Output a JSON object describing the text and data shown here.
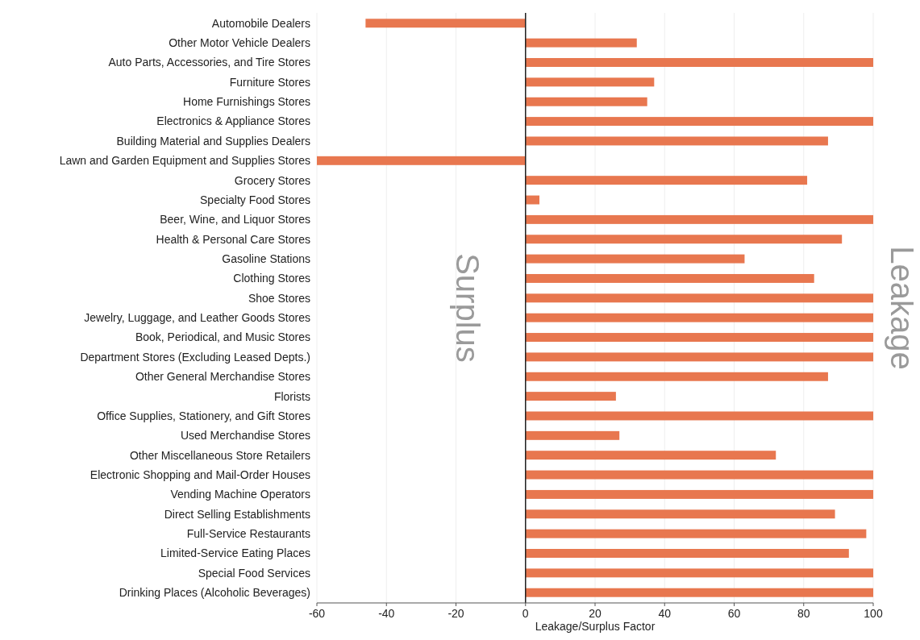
{
  "chart_data": {
    "type": "bar",
    "orientation": "horizontal",
    "xlabel": "Leakage/Surplus Factor",
    "categories": [
      "Automobile Dealers",
      "Other Motor Vehicle Dealers",
      "Auto Parts, Accessories, and Tire Stores",
      "Furniture Stores",
      "Home Furnishings Stores",
      "Electronics & Appliance Stores",
      "Building Material and Supplies Dealers",
      "Lawn and Garden Equipment and Supplies Stores",
      "Grocery Stores",
      "Specialty Food Stores",
      "Beer, Wine, and Liquor Stores",
      "Health & Personal Care Stores",
      "Gasoline Stations",
      "Clothing Stores",
      "Shoe Stores",
      "Jewelry, Luggage, and Leather Goods Stores",
      "Book, Periodical, and Music Stores",
      "Department Stores (Excluding Leased Depts.)",
      "Other General Merchandise Stores",
      "Florists",
      "Office Supplies, Stationery, and Gift Stores",
      "Used Merchandise Stores",
      "Other Miscellaneous Store Retailers",
      "Electronic Shopping and Mail-Order Houses",
      "Vending Machine Operators",
      "Direct Selling Establishments",
      "Full-Service Restaurants",
      "Limited-Service Eating Places",
      "Special Food Services",
      "Drinking Places (Alcoholic Beverages)"
    ],
    "values": [
      -46,
      32,
      100,
      37,
      35,
      100,
      87,
      -60,
      81,
      4,
      100,
      91,
      63,
      83,
      100,
      100,
      100,
      100,
      87,
      26,
      100,
      27,
      72,
      100,
      100,
      89,
      98,
      93,
      100,
      100
    ],
    "color": "#e8774f",
    "xlim": [
      -60,
      100
    ],
    "xticks": [
      -60,
      -40,
      -20,
      0,
      20,
      40,
      60,
      80,
      100
    ],
    "annotations": [
      "Surplus",
      "Leakage"
    ],
    "grid": "x"
  }
}
